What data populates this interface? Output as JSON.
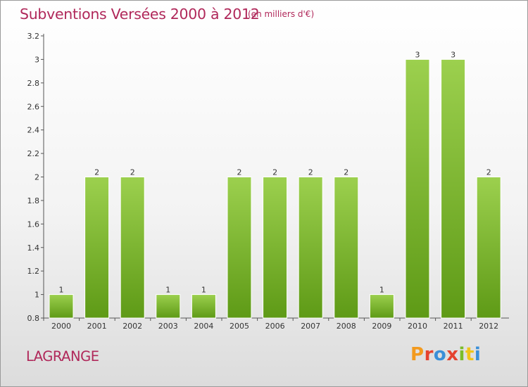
{
  "chart_data": {
    "type": "bar",
    "title": "Subventions Versées 2000 à 2012",
    "subtitle": "(en milliers d'€)",
    "categories": [
      "2000",
      "2001",
      "2002",
      "2003",
      "2004",
      "2005",
      "2006",
      "2007",
      "2008",
      "2009",
      "2010",
      "2011",
      "2012"
    ],
    "values": [
      1,
      2,
      2,
      1,
      1,
      2,
      2,
      2,
      2,
      1,
      3,
      3,
      2
    ],
    "data_labels": [
      "1",
      "2",
      "2",
      "1",
      "1",
      "2",
      "2",
      "2",
      "2",
      "1",
      "3",
      "3",
      "2"
    ],
    "yticks": [
      "0.8",
      "1",
      "1.2",
      "1.4",
      "1.6",
      "1.8",
      "2",
      "2.2",
      "2.4",
      "2.6",
      "2.8",
      "3",
      "3.2"
    ],
    "ylim": [
      0.8,
      3.2
    ],
    "grid": false,
    "bar_color": "#7fb832"
  },
  "commune": "LAGRANGE",
  "logo": {
    "text": "Proxiti",
    "colors": [
      "#f39a1e",
      "#e5432f",
      "#3a8fd8",
      "#7bbd2a",
      "#f0c419"
    ]
  }
}
